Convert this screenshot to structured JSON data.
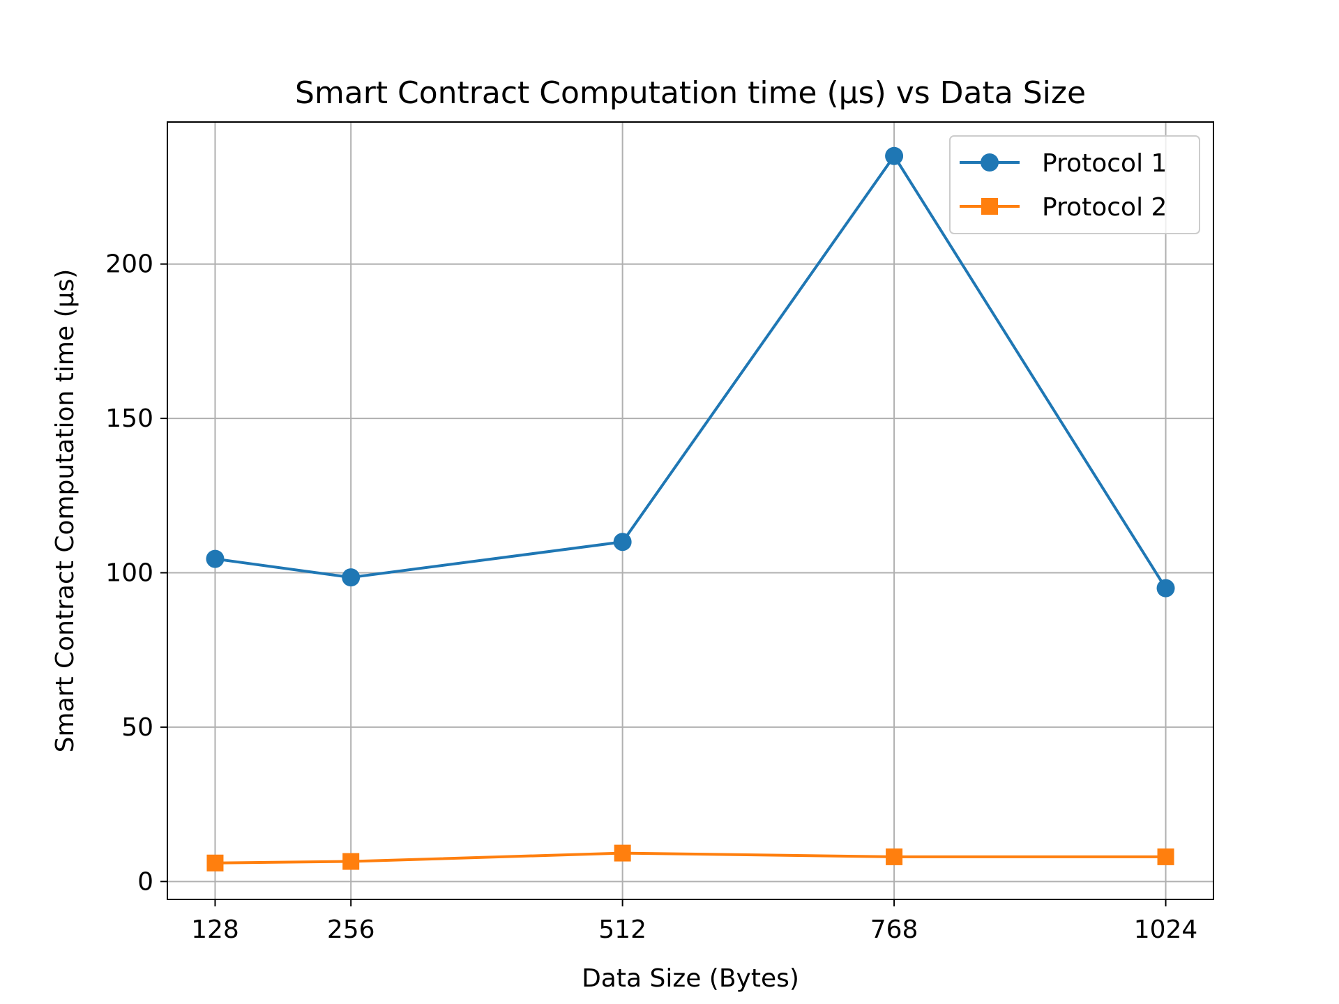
{
  "chart_data": {
    "type": "line",
    "title": "Smart Contract Computation time (µs) vs Data Size",
    "xlabel": "Data Size (Bytes)",
    "ylabel": "Smart Contract Computation time (µs)",
    "x": [
      128,
      256,
      512,
      768,
      1024
    ],
    "x_tick_labels": [
      "128",
      "256",
      "512",
      "768",
      "1024"
    ],
    "xlim": [
      83,
      1069
    ],
    "ylim": [
      -5.8,
      246
    ],
    "y_ticks": [
      0,
      50,
      100,
      150,
      200
    ],
    "y_tick_labels": [
      "0",
      "50",
      "100",
      "150",
      "200"
    ],
    "grid": true,
    "legend_position": "top-right",
    "series": [
      {
        "name": "Protocol 1",
        "color": "#1f77b4",
        "marker": "circle",
        "values": [
          104.5,
          98.5,
          110,
          235,
          95
        ]
      },
      {
        "name": "Protocol 2",
        "color": "#ff7f0e",
        "marker": "square",
        "values": [
          6,
          6.5,
          9.2,
          8,
          8
        ]
      }
    ]
  }
}
